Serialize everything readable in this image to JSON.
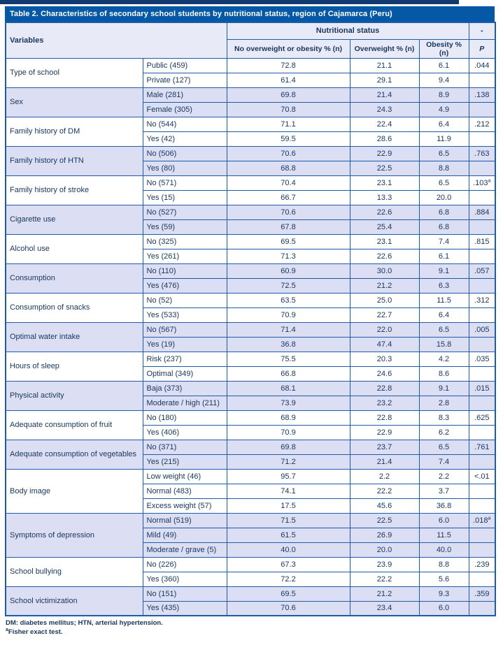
{
  "title": "Table 2. Characteristics of secondary school students by nutritional status, region of Cajamarca (Peru)",
  "header": {
    "variables": "Variables",
    "nutritional_status": "Nutritional status",
    "dash": "-",
    "col_no_overweight": "No overweight or obesity % (n)",
    "col_overweight": "Overweight % (n)",
    "col_obesity": "Obesity % (n)",
    "col_p": "P"
  },
  "groups": [
    {
      "variable": "Type of school",
      "p": ".044",
      "p_sup": "",
      "rows": [
        {
          "category": "Public (459)",
          "no_ow": "72.8",
          "ow": "21.1",
          "ob": "6.1"
        },
        {
          "category": "Private (127)",
          "no_ow": "61.4",
          "ow": "29.1",
          "ob": "9.4"
        }
      ]
    },
    {
      "variable": "Sex",
      "p": ".138",
      "p_sup": "",
      "rows": [
        {
          "category": "Male (281)",
          "no_ow": "69.8",
          "ow": "21.4",
          "ob": "8.9"
        },
        {
          "category": "Female (305)",
          "no_ow": "70.8",
          "ow": "24.3",
          "ob": "4.9"
        }
      ]
    },
    {
      "variable": "Family history of DM",
      "p": ".212",
      "p_sup": "",
      "rows": [
        {
          "category": "No (544)",
          "no_ow": "71.1",
          "ow": "22.4",
          "ob": "6.4"
        },
        {
          "category": "Yes (42)",
          "no_ow": "59.5",
          "ow": "28.6",
          "ob": "11.9"
        }
      ]
    },
    {
      "variable": "Family history of HTN",
      "p": ".763",
      "p_sup": "",
      "rows": [
        {
          "category": "No (506)",
          "no_ow": "70.6",
          "ow": "22.9",
          "ob": "6.5"
        },
        {
          "category": "Yes (80)",
          "no_ow": "68.8",
          "ow": "22.5",
          "ob": "8.8"
        }
      ]
    },
    {
      "variable": "Family history of stroke",
      "p": ".103",
      "p_sup": "a",
      "rows": [
        {
          "category": "No (571)",
          "no_ow": "70.4",
          "ow": "23.1",
          "ob": "6.5"
        },
        {
          "category": "Yes (15)",
          "no_ow": "66.7",
          "ow": "13.3",
          "ob": "20.0"
        }
      ]
    },
    {
      "variable": "Cigarette use",
      "p": ".884",
      "p_sup": "",
      "rows": [
        {
          "category": "No (527)",
          "no_ow": "70.6",
          "ow": "22.6",
          "ob": "6.8"
        },
        {
          "category": "Yes (59)",
          "no_ow": "67.8",
          "ow": "25.4",
          "ob": "6.8"
        }
      ]
    },
    {
      "variable": "Alcohol use",
      "p": ".815",
      "p_sup": "",
      "rows": [
        {
          "category": "No (325)",
          "no_ow": "69.5",
          "ow": "23.1",
          "ob": "7.4"
        },
        {
          "category": "Yes (261)",
          "no_ow": "71.3",
          "ow": "22.6",
          "ob": "6.1"
        }
      ]
    },
    {
      "variable": "Consumption",
      "p": ".057",
      "p_sup": "",
      "rows": [
        {
          "category": "No (110)",
          "no_ow": "60.9",
          "ow": "30.0",
          "ob": "9.1"
        },
        {
          "category": "Yes (476)",
          "no_ow": "72.5",
          "ow": "21.2",
          "ob": "6.3"
        }
      ]
    },
    {
      "variable": "Consumption of snacks",
      "p": ".312",
      "p_sup": "",
      "rows": [
        {
          "category": "No (52)",
          "no_ow": "63.5",
          "ow": "25.0",
          "ob": "11.5"
        },
        {
          "category": "Yes (533)",
          "no_ow": "70.9",
          "ow": "22.7",
          "ob": "6.4"
        }
      ]
    },
    {
      "variable": "Optimal water intake",
      "p": ".005",
      "p_sup": "",
      "rows": [
        {
          "category": "No (567)",
          "no_ow": "71.4",
          "ow": "22.0",
          "ob": "6.5"
        },
        {
          "category": "Yes (19)",
          "no_ow": "36.8",
          "ow": "47.4",
          "ob": "15.8"
        }
      ]
    },
    {
      "variable": "Hours of sleep",
      "p": ".035",
      "p_sup": "",
      "rows": [
        {
          "category": "Risk (237)",
          "no_ow": "75.5",
          "ow": "20.3",
          "ob": "4.2"
        },
        {
          "category": "Optimal (349)",
          "no_ow": "66.8",
          "ow": "24.6",
          "ob": "8.6"
        }
      ]
    },
    {
      "variable": "Physical activity",
      "p": ".015",
      "p_sup": "",
      "rows": [
        {
          "category": "Baja (373)",
          "no_ow": "68.1",
          "ow": "22.8",
          "ob": "9.1"
        },
        {
          "category": "Moderate / high (211)",
          "no_ow": "73.9",
          "ow": "23.2",
          "ob": "2.8"
        }
      ]
    },
    {
      "variable": "Adequate consumption of fruit",
      "p": ".625",
      "p_sup": "",
      "rows": [
        {
          "category": "No (180)",
          "no_ow": "68.9",
          "ow": "22.8",
          "ob": "8.3"
        },
        {
          "category": "Yes (406)",
          "no_ow": "70.9",
          "ow": "22.9",
          "ob": "6.2"
        }
      ]
    },
    {
      "variable": "Adequate consumption of vegetables",
      "p": ".761",
      "p_sup": "",
      "rows": [
        {
          "category": "No (371)",
          "no_ow": "69.8",
          "ow": "23.7",
          "ob": "6.5"
        },
        {
          "category": "Yes (215)",
          "no_ow": "71.2",
          "ow": "21.4",
          "ob": "7.4"
        }
      ]
    },
    {
      "variable": "Body image",
      "p": "<.01",
      "p_sup": "",
      "rows": [
        {
          "category": "Low weight (46)",
          "no_ow": "95.7",
          "ow": "2.2",
          "ob": "2.2"
        },
        {
          "category": "Normal (483)",
          "no_ow": "74.1",
          "ow": "22.2",
          "ob": "3.7"
        },
        {
          "category": "Excess weight (57)",
          "no_ow": "17.5",
          "ow": "45.6",
          "ob": "36.8"
        }
      ]
    },
    {
      "variable": "Symptoms of depression",
      "p": ".018",
      "p_sup": "a",
      "rows": [
        {
          "category": "Normal (519)",
          "no_ow": "71.5",
          "ow": "22.5",
          "ob": "6.0"
        },
        {
          "category": "Mild (49)",
          "no_ow": "61.5",
          "ow": "26.9",
          "ob": "11.5"
        },
        {
          "category": "Moderate / grave (5)",
          "no_ow": "40.0",
          "ow": "20.0",
          "ob": "40.0"
        }
      ]
    },
    {
      "variable": "School bullying",
      "p": ".239",
      "p_sup": "",
      "rows": [
        {
          "category": "No (226)",
          "no_ow": "67.3",
          "ow": "23.9",
          "ob": "8.8"
        },
        {
          "category": "Yes (360)",
          "no_ow": "72.2",
          "ow": "22.2",
          "ob": "5.6"
        }
      ]
    },
    {
      "variable": "School victimization",
      "p": ".359",
      "p_sup": "",
      "rows": [
        {
          "category": "No (151)",
          "no_ow": "69.5",
          "ow": "21.2",
          "ob": "9.3"
        },
        {
          "category": "Yes (435)",
          "no_ow": "70.6",
          "ow": "23.4",
          "ob": "6.0"
        }
      ]
    }
  ],
  "footnotes": {
    "line1": "DM: diabetes mellitus; HTN, arterial hypertension.",
    "line2_sup": "a",
    "line2": "Fisher exact test."
  },
  "colors": {
    "top_strip": "#123a70",
    "title_bar": "#0458a5",
    "header_bg": "#e9eaf8",
    "band_bg": "#dcdef4",
    "border": "#1e5ca7",
    "text": "#17365d"
  }
}
